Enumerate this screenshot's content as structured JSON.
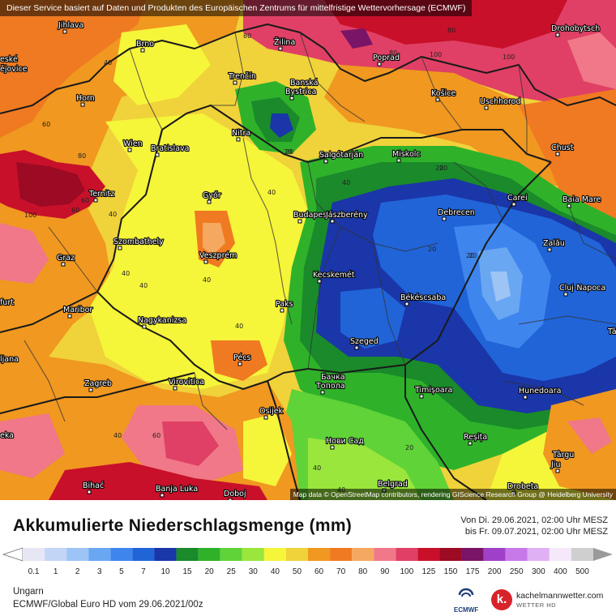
{
  "top_note": "Dieser Service basiert auf Daten und Produkten des Europäischen Zentrums für mittelfristige Wettervorhersage (ECMWF)",
  "attribution": "Map data © OpenStreetMap contributors, rendering GIScience Research Group @ Heidelberg University",
  "title": "Akkumulierte Niederschlagsmenge (mm)",
  "period_from": "Von Di. 29.06.2021, 02:00 Uhr MESZ",
  "period_to": "bis Fr. 09.07.2021, 02:00 Uhr MESZ",
  "region": "Ungarn",
  "model_run": "ECMWF/Global Euro HD vom  29.06.2021/00z",
  "ecmwf_logo_text": "ECMWF",
  "brand_name": "kachelmannwetter.com",
  "brand_sub": "WETTER HD",
  "brand_letter": "k.",
  "scale": {
    "values": [
      "0.1",
      "1",
      "2",
      "3",
      "5",
      "7",
      "10",
      "15",
      "20",
      "25",
      "30",
      "40",
      "50",
      "60",
      "70",
      "80",
      "90",
      "100",
      "125",
      "150",
      "175",
      "200",
      "250",
      "300",
      "400",
      "500"
    ],
    "colors": [
      "#e6e6f5",
      "#c3d5f7",
      "#9dc4f5",
      "#6aa7f2",
      "#3f85ee",
      "#2064d8",
      "#1a36a8",
      "#1a8a2a",
      "#2fb22a",
      "#5fd337",
      "#9ae63c",
      "#f5f53a",
      "#f0d23a",
      "#f09820",
      "#f07a22",
      "#f5a860",
      "#f07888",
      "#e04065",
      "#c8102a",
      "#9c0a24",
      "#7a1466",
      "#a040c8",
      "#c878e8",
      "#e0b0f5",
      "#f6e8fb",
      "#cfcfcf"
    ],
    "left_arrow_color": "#ffffff",
    "right_arrow_color": "#9a9a9a"
  },
  "cities": [
    {
      "name": "Jihlava"
    },
    {
      "name": "Brno"
    },
    {
      "name": "Žilina"
    },
    {
      "name": "Poprad"
    },
    {
      "name": "Drohobytsch"
    },
    {
      "name": "eské"
    },
    {
      "name": "ějovice"
    },
    {
      "name": "Trenčín"
    },
    {
      "name": "Banská"
    },
    {
      "name": "Bystrica"
    },
    {
      "name": "Košice"
    },
    {
      "name": "Uschhorod"
    },
    {
      "name": "Horn"
    },
    {
      "name": "Nitra"
    },
    {
      "name": "Wien"
    },
    {
      "name": "Bratislava"
    },
    {
      "name": "Salgótarján"
    },
    {
      "name": "Miskolc"
    },
    {
      "name": "Chust"
    },
    {
      "name": "Ternitz"
    },
    {
      "name": "Győr"
    },
    {
      "name": "Carei"
    },
    {
      "name": "Baia Mare"
    },
    {
      "name": "Budapest"
    },
    {
      "name": "Jászberény"
    },
    {
      "name": "Debrecen"
    },
    {
      "name": "Szombathely"
    },
    {
      "name": "Zalău"
    },
    {
      "name": "Graz"
    },
    {
      "name": "Veszprém"
    },
    {
      "name": "Kecskemét"
    },
    {
      "name": "Cluj-Napoca"
    },
    {
      "name": "Maribor"
    },
    {
      "name": "Paks"
    },
    {
      "name": "Békéscsaba"
    },
    {
      "name": "furt"
    },
    {
      "name": "Nagykanizsa"
    },
    {
      "name": "Szeged"
    },
    {
      "name": "Tâ"
    },
    {
      "name": "ljana"
    },
    {
      "name": "Pécs"
    },
    {
      "name": "Бачка"
    },
    {
      "name": "Топола"
    },
    {
      "name": "Zagreb"
    },
    {
      "name": "Virovitica"
    },
    {
      "name": "Timișoara"
    },
    {
      "name": "Hunedoara"
    },
    {
      "name": "Osijek"
    },
    {
      "name": "Reșița"
    },
    {
      "name": "Нови Сад"
    },
    {
      "name": "eka"
    },
    {
      "name": "Târgu"
    },
    {
      "name": "Jiu"
    },
    {
      "name": "Bihać"
    },
    {
      "name": "Banja Luka"
    },
    {
      "name": "Doboj"
    },
    {
      "name": "Belgrad"
    },
    {
      "name": "Drobeta"
    }
  ],
  "isolines": [
    {
      "value": "40"
    },
    {
      "value": "80"
    },
    {
      "value": "80"
    },
    {
      "value": "100"
    },
    {
      "value": "100"
    },
    {
      "value": "80"
    },
    {
      "value": "60"
    },
    {
      "value": "60"
    },
    {
      "value": "80"
    },
    {
      "value": "100"
    },
    {
      "value": "60"
    },
    {
      "value": "40"
    },
    {
      "value": "20"
    },
    {
      "value": "20"
    },
    {
      "value": "40"
    },
    {
      "value": "20"
    },
    {
      "value": "20"
    },
    {
      "value": "20"
    },
    {
      "value": "40"
    },
    {
      "value": "40"
    },
    {
      "value": "40"
    },
    {
      "value": "40"
    },
    {
      "value": "40"
    },
    {
      "value": "60"
    },
    {
      "value": "40"
    },
    {
      "value": "20"
    },
    {
      "value": "40"
    },
    {
      "value": "40"
    },
    {
      "value": "20"
    },
    {
      "value": "20"
    }
  ]
}
